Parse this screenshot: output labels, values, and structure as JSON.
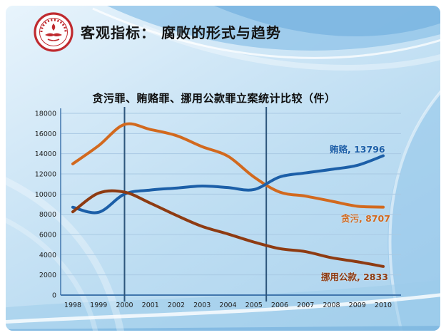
{
  "header": {
    "title": "客观指标： 腐败的形式与趋势",
    "logo": "university-red-seal"
  },
  "colors": {
    "grid": "#a9c9e3",
    "axis": "#4176ad",
    "reference_line": "#2d567c",
    "tick_text": "#222222",
    "logo_red": "#bf2a2f"
  },
  "chart_data": {
    "type": "line",
    "title": "贪污罪、贿赂罪、挪用公款罪立案统计比较（件）",
    "x": [
      1998,
      1999,
      2000,
      2001,
      2002,
      2003,
      2004,
      2005,
      2006,
      2007,
      2008,
      2009,
      2010
    ],
    "series": [
      {
        "name": "贪污",
        "label": "贪污, 8707",
        "color": "#d2691e",
        "values": [
          13000,
          14800,
          16900,
          16400,
          15800,
          14700,
          13750,
          11700,
          10200,
          9800,
          9300,
          8800,
          8707
        ]
      },
      {
        "name": "贿赂",
        "label": "贿赂, 13796",
        "color": "#1c5fa8",
        "values": [
          8700,
          8200,
          10000,
          10400,
          10600,
          10800,
          10650,
          10450,
          11700,
          12100,
          12450,
          12850,
          13796
        ]
      },
      {
        "name": "挪用公款",
        "label": "挪用公款, 2833",
        "color": "#8e3b12",
        "values": [
          8250,
          10100,
          10200,
          9100,
          7900,
          6800,
          6050,
          5250,
          4600,
          4300,
          3700,
          3300,
          2833
        ]
      }
    ],
    "ylim": [
      0,
      18000
    ],
    "ytick_step": 2000,
    "yticks": [
      0,
      2000,
      4000,
      6000,
      8000,
      10000,
      12000,
      14000,
      16000,
      18000
    ],
    "reference_lines_x": [
      2000,
      2005.48
    ],
    "grid": true,
    "legend_position": "end-of-line-labels"
  }
}
